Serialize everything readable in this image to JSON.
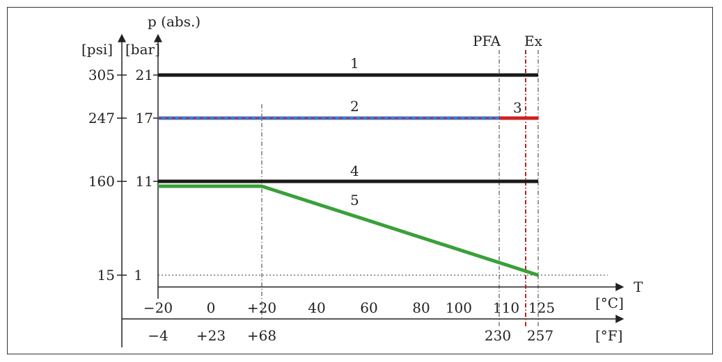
{
  "chart_data": {
    "type": "line",
    "title": "",
    "ylabel": "p (abs.)",
    "xlabel": "T",
    "y_unit_primary": "[bar]",
    "y_unit_secondary": "[psi]",
    "x_unit_primary": "[°C]",
    "x_unit_secondary": "[°F]",
    "x_range_c": [
      -20,
      125
    ],
    "y_range_bar": [
      1,
      21
    ],
    "x_ticks_c": [
      "-20",
      "0",
      "+20",
      "40",
      "60",
      "80",
      "100",
      "110",
      "125"
    ],
    "x_ticks_f": [
      "-4",
      "+23",
      "+68",
      "230",
      "257"
    ],
    "y_ticks": [
      {
        "bar": "21",
        "psi": "305"
      },
      {
        "bar": "17",
        "psi": "247"
      },
      {
        "bar": "11",
        "psi": "160"
      },
      {
        "bar": "1",
        "psi": "15"
      }
    ],
    "vertical_markers": [
      {
        "label": "PFA",
        "x": 110
      },
      {
        "label": "Ex",
        "x": 118
      },
      {
        "label": "",
        "x": 125
      }
    ],
    "series": [
      {
        "name": "1",
        "color": "#1a1a1a",
        "x": [
          -20,
          125
        ],
        "y": [
          21,
          21
        ]
      },
      {
        "name": "2",
        "color": "#3a7bd5",
        "dash_color": "#cc2222",
        "x": [
          -20,
          110
        ],
        "y": [
          17,
          17
        ]
      },
      {
        "name": "3",
        "color": "#cc2222",
        "x": [
          110,
          125
        ],
        "y": [
          17,
          17
        ]
      },
      {
        "name": "4",
        "color": "#1a1a1a",
        "x": [
          -20,
          125
        ],
        "y": [
          11,
          11
        ]
      },
      {
        "name": "5",
        "color": "#3aa03a",
        "x": [
          -20,
          20,
          125
        ],
        "y": [
          10.5,
          10.5,
          1
        ]
      }
    ]
  }
}
